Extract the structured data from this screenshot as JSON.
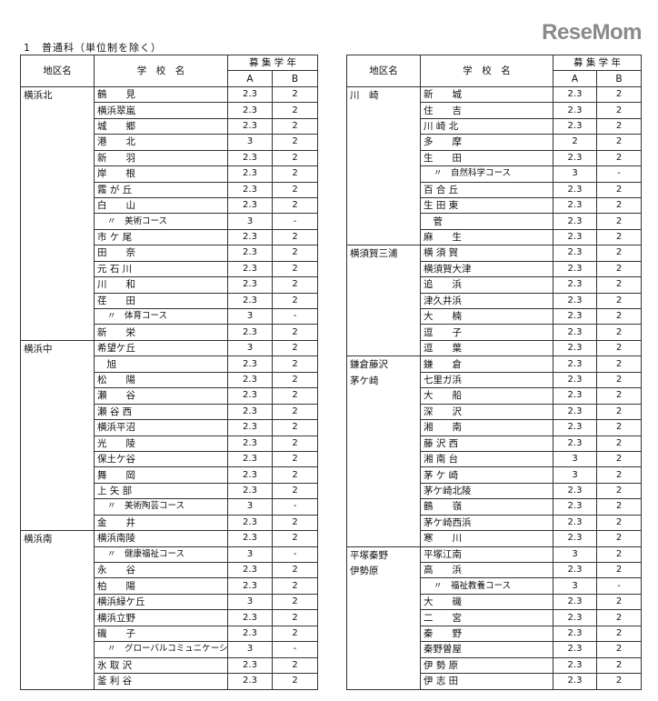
{
  "caption": "1　普通科（単位制を除く）",
  "header": {
    "district": "地区名",
    "school": "学　校　名",
    "years": "募 集 学 年",
    "a": "A",
    "b": "B"
  },
  "left": [
    {
      "district": "横浜北",
      "rows": [
        [
          "鶴　　見",
          "2.3",
          "2",
          false
        ],
        [
          "横浜翠嵐",
          "2.3",
          "2",
          false
        ],
        [
          "城　　郷",
          "2.3",
          "2",
          false
        ],
        [
          "港　　北",
          "3",
          "2",
          false
        ],
        [
          "新　　羽",
          "2.3",
          "2",
          false
        ],
        [
          "岸　　根",
          "2.3",
          "2",
          false
        ],
        [
          "霧 が 丘",
          "2.3",
          "2",
          false
        ],
        [
          "白　　山",
          "2.3",
          "2",
          false
        ],
        [
          "〃　美術コース",
          "3",
          "-",
          true
        ],
        [
          "市 ケ 尾",
          "2.3",
          "2",
          false
        ],
        [
          "田　　奈",
          "2.3",
          "2",
          false
        ],
        [
          "元 石 川",
          "2.3",
          "2",
          false
        ],
        [
          "川　　和",
          "2.3",
          "2",
          false
        ],
        [
          "荏　　田",
          "2.3",
          "2",
          false
        ],
        [
          "〃　体育コース",
          "3",
          "-",
          true
        ],
        [
          "新　　栄",
          "2.3",
          "2",
          false
        ]
      ]
    },
    {
      "district": "横浜中",
      "rows": [
        [
          "希望ケ丘",
          "3",
          "2",
          false
        ],
        [
          "　旭",
          "2.3",
          "2",
          false
        ],
        [
          "松　　陽",
          "2.3",
          "2",
          false
        ],
        [
          "瀬　　谷",
          "2.3",
          "2",
          false
        ],
        [
          "瀬 谷 西",
          "2.3",
          "2",
          false
        ],
        [
          "横浜平沼",
          "2.3",
          "2",
          false
        ],
        [
          "光　　陵",
          "2.3",
          "2",
          false
        ],
        [
          "保土ケ谷",
          "2.3",
          "2",
          false
        ],
        [
          "舞　　岡",
          "2.3",
          "2",
          false
        ],
        [
          "上 矢 部",
          "2.3",
          "2",
          false
        ],
        [
          "〃　美術陶芸コース",
          "3",
          "-",
          true
        ],
        [
          "金　　井",
          "2.3",
          "2",
          false
        ]
      ]
    },
    {
      "district": "横浜南",
      "rows": [
        [
          "横浜南陵",
          "2.3",
          "2",
          false
        ],
        [
          "〃　健康福祉コース",
          "3",
          "-",
          true
        ],
        [
          "永　　谷",
          "2.3",
          "2",
          false
        ],
        [
          "柏　　陽",
          "2.3",
          "2",
          false
        ],
        [
          "横浜緑ケ丘",
          "3",
          "2",
          false
        ],
        [
          "横浜立野",
          "2.3",
          "2",
          false
        ],
        [
          "磯　　子",
          "2.3",
          "2",
          false
        ],
        [
          "〃　グローバルコミュニケーションコース",
          "3",
          "-",
          true
        ],
        [
          "氷 取 沢",
          "2.3",
          "2",
          false
        ],
        [
          "釜 利 谷",
          "2.3",
          "2",
          false
        ]
      ]
    }
  ],
  "right": [
    {
      "district": "川　崎",
      "rows": [
        [
          "新　　城",
          "2.3",
          "2",
          false
        ],
        [
          "住　　吉",
          "2.3",
          "2",
          false
        ],
        [
          "川 崎 北",
          "2.3",
          "2",
          false
        ],
        [
          "多　　摩",
          "2",
          "2",
          false
        ],
        [
          "生　　田",
          "2.3",
          "2",
          false
        ],
        [
          "〃　自然科学コース",
          "3",
          "-",
          true
        ],
        [
          "百 合 丘",
          "2.3",
          "2",
          false
        ],
        [
          "生 田 東",
          "2.3",
          "2",
          false
        ],
        [
          "　菅",
          "2.3",
          "2",
          false
        ],
        [
          "麻　　生",
          "2.3",
          "2",
          false
        ]
      ]
    },
    {
      "district": "横須賀三浦",
      "rows": [
        [
          "横 須 賀",
          "2.3",
          "2",
          false
        ],
        [
          "横須賀大津",
          "2.3",
          "2",
          false
        ],
        [
          "追　　浜",
          "2.3",
          "2",
          false
        ],
        [
          "津久井浜",
          "2.3",
          "2",
          false
        ],
        [
          "大　　楠",
          "2.3",
          "2",
          false
        ],
        [
          "逗　　子",
          "2.3",
          "2",
          false
        ],
        [
          "逗　　葉",
          "2.3",
          "2",
          false
        ]
      ]
    },
    {
      "district": "鎌倉藤沢\n茅ケ崎",
      "rows": [
        [
          "鎌　　倉",
          "2.3",
          "2",
          false
        ],
        [
          "七里ガ浜",
          "2.3",
          "2",
          false
        ],
        [
          "大　　船",
          "2.3",
          "2",
          false
        ],
        [
          "深　　沢",
          "2.3",
          "2",
          false
        ],
        [
          "湘　　南",
          "2.3",
          "2",
          false
        ],
        [
          "藤 沢 西",
          "2.3",
          "2",
          false
        ],
        [
          "湘 南 台",
          "3",
          "2",
          false
        ],
        [
          "茅 ケ 崎",
          "3",
          "2",
          false
        ],
        [
          "茅ケ崎北陵",
          "2.3",
          "2",
          false
        ],
        [
          "鶴　　嶺",
          "2.3",
          "2",
          false
        ],
        [
          "茅ケ崎西浜",
          "2.3",
          "2",
          false
        ],
        [
          "寒　　川",
          "2.3",
          "2",
          false
        ]
      ]
    },
    {
      "district": "平塚秦野\n伊勢原",
      "rows": [
        [
          "平塚江南",
          "3",
          "2",
          false
        ],
        [
          "高　　浜",
          "2.3",
          "2",
          false
        ],
        [
          "〃　福祉教養コース",
          "3",
          "-",
          true
        ],
        [
          "大　　磯",
          "2.3",
          "2",
          false
        ],
        [
          "二　　宮",
          "2.3",
          "2",
          false
        ],
        [
          "秦　　野",
          "2.3",
          "2",
          false
        ],
        [
          "秦野曽屋",
          "2.3",
          "2",
          false
        ],
        [
          "伊 勢 原",
          "2.3",
          "2",
          false
        ],
        [
          "伊 志 田",
          "2.3",
          "2",
          false
        ]
      ]
    }
  ],
  "watermark": "ReseMom"
}
